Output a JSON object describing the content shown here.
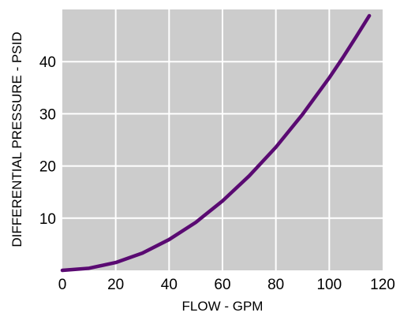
{
  "chart_data": {
    "type": "line",
    "title": "",
    "xlabel": "FLOW - GPM",
    "ylabel": "DIFFERENTIAL PRESSURE - PSID",
    "xlim": [
      0,
      120
    ],
    "ylim": [
      0,
      50
    ],
    "x_ticks": [
      0,
      20,
      40,
      60,
      80,
      100,
      120
    ],
    "y_ticks": [
      10,
      20,
      30,
      40
    ],
    "grid": true,
    "legend": "none",
    "series": [
      {
        "color": "#5a0a72",
        "x": [
          0,
          10,
          20,
          30,
          40,
          50,
          60,
          70,
          80,
          90,
          100,
          105,
          110,
          115
        ],
        "y": [
          0,
          0.4,
          1.5,
          3.3,
          5.9,
          9.2,
          13.3,
          18.1,
          23.6,
          29.9,
          36.9,
          40.7,
          44.7,
          48.8
        ]
      }
    ],
    "colors": {
      "plot_background": "#cccccc",
      "grid": "#ffffff",
      "line": "#5a0a72"
    }
  }
}
